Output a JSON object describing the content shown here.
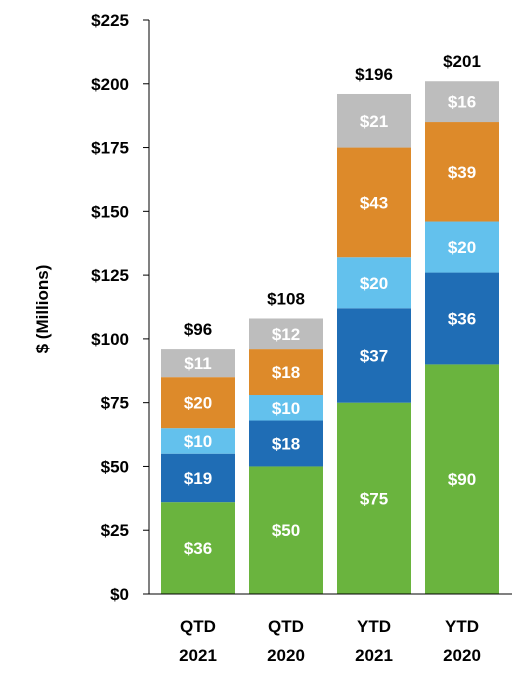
{
  "chart_data": {
    "type": "bar",
    "stacked": true,
    "ylabel": "$ (Millions)",
    "xlabel": "",
    "title": "",
    "ylim": [
      0,
      225
    ],
    "yticks": [
      0,
      25,
      50,
      75,
      100,
      125,
      150,
      175,
      200,
      225
    ],
    "ytick_labels": [
      "$0",
      "$25",
      "$50",
      "$75",
      "$100",
      "$125",
      "$150",
      "$175",
      "$200",
      "$225"
    ],
    "categories": [
      [
        "QTD",
        "2021"
      ],
      [
        "QTD",
        "2020"
      ],
      [
        "YTD",
        "2021"
      ],
      [
        "YTD",
        "2020"
      ]
    ],
    "series": [
      {
        "color": "#6ab43e",
        "values": [
          36,
          50,
          75,
          90
        ],
        "labels": [
          "$36",
          "$50",
          "$75",
          "$90"
        ]
      },
      {
        "color": "#1f6db5",
        "values": [
          19,
          18,
          37,
          36
        ],
        "labels": [
          "$19",
          "$18",
          "$37",
          "$36"
        ]
      },
      {
        "color": "#63c1ed",
        "values": [
          10,
          10,
          20,
          20
        ],
        "labels": [
          "$10",
          "$10",
          "$20",
          "$20"
        ]
      },
      {
        "color": "#dd8a2a",
        "values": [
          20,
          18,
          43,
          39
        ],
        "labels": [
          "$20",
          "$18",
          "$43",
          "$39"
        ]
      },
      {
        "color": "#bdbdbd",
        "values": [
          11,
          12,
          21,
          16
        ],
        "labels": [
          "$11",
          "$12",
          "$21",
          "$16"
        ]
      }
    ],
    "totals": [
      96,
      108,
      196,
      201
    ],
    "total_labels": [
      "$96",
      "$108",
      "$196",
      "$201"
    ],
    "grid": false,
    "legend": "none"
  }
}
